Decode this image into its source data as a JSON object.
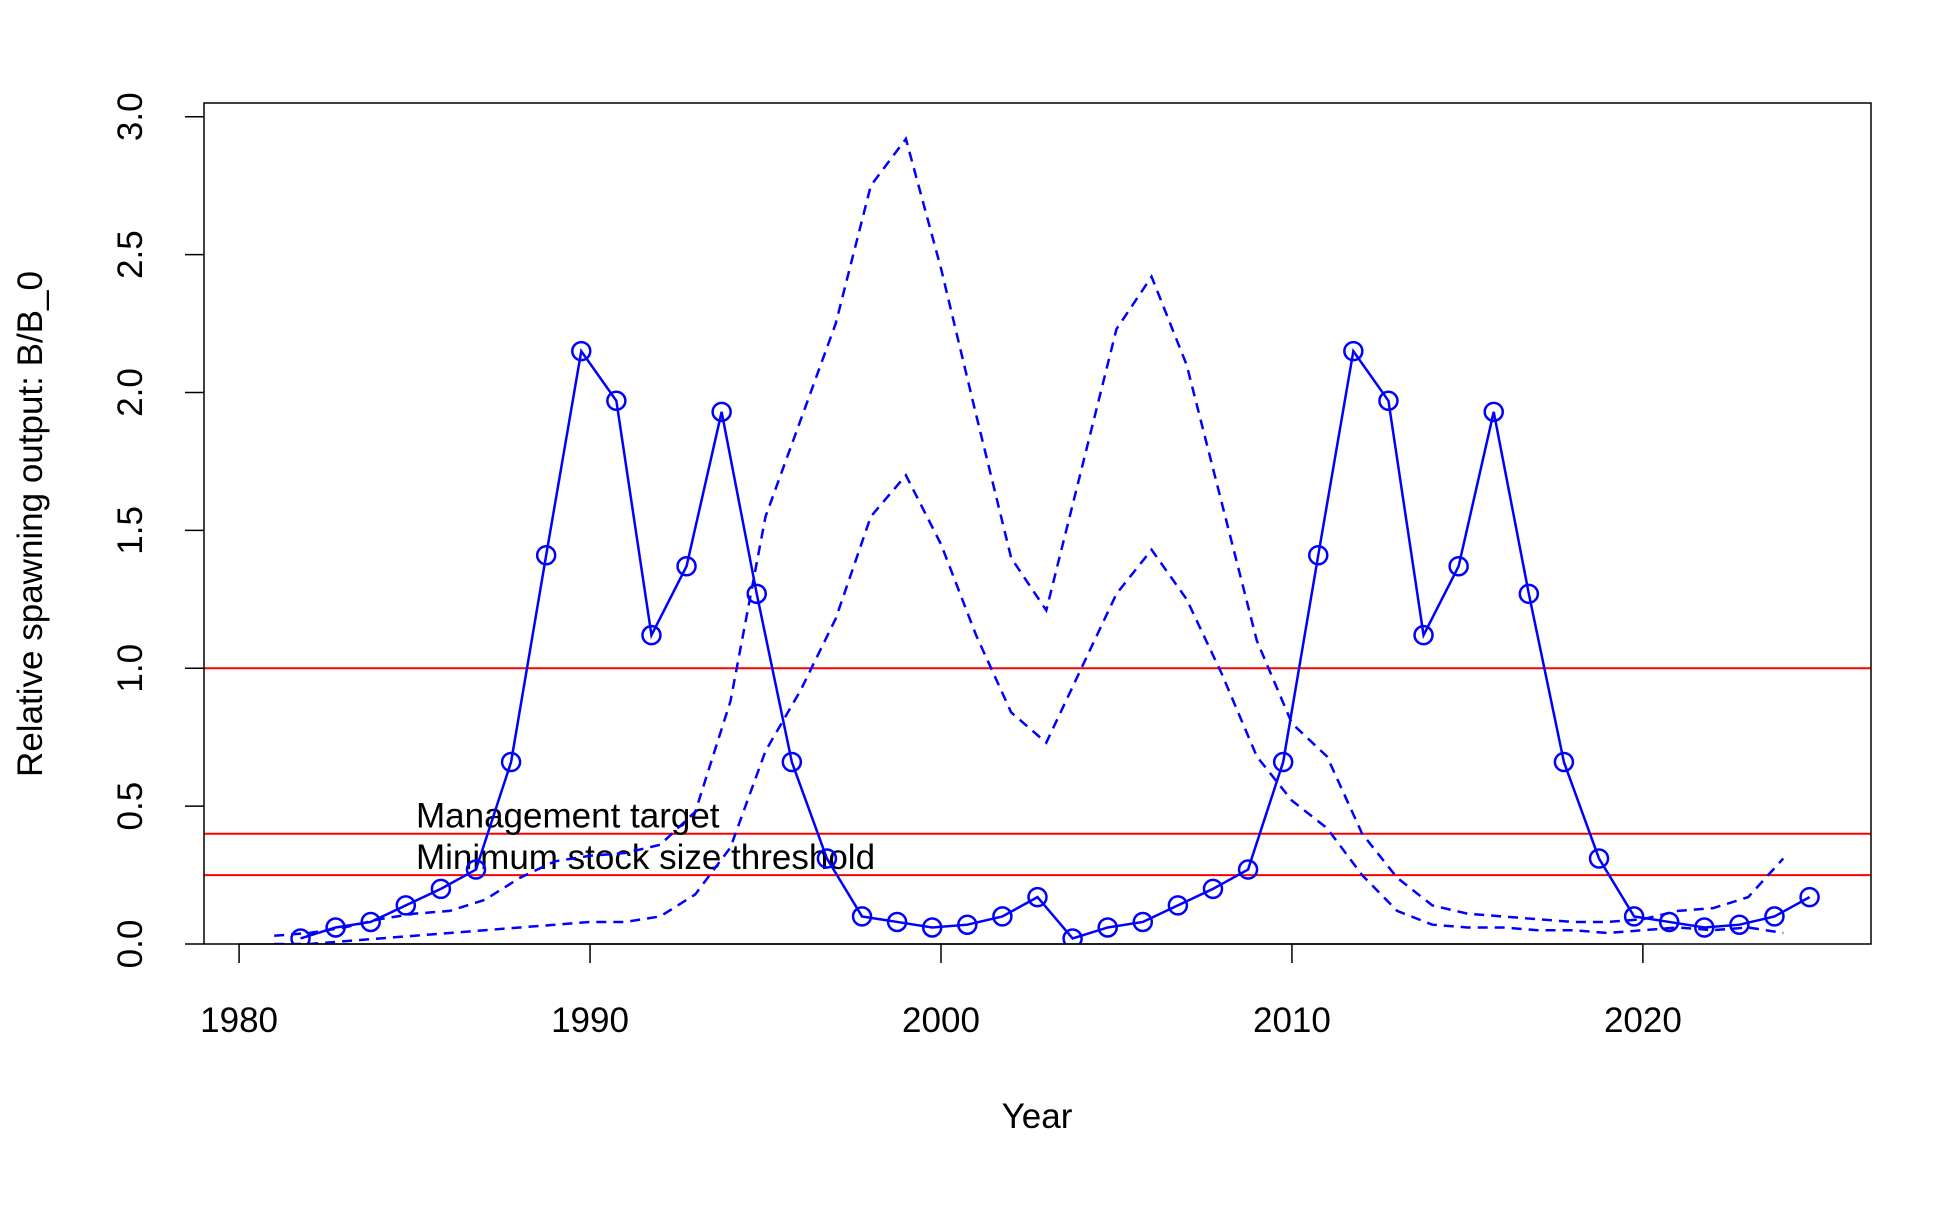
{
  "chart_data": {
    "type": "line",
    "x_label": "Year",
    "y_label": "Relative spawning output: B/B_0",
    "xlim": [
      1979,
      2026.5
    ],
    "ylim": [
      0,
      3.05
    ],
    "xticks": [
      1980,
      1990,
      2000,
      2010,
      2020
    ],
    "yticks": [
      {
        "value": 0,
        "label": "0.0"
      },
      {
        "value": 0.5,
        "label": "0.5"
      },
      {
        "value": 1,
        "label": "1.0"
      },
      {
        "value": 1.5,
        "label": "1.5"
      },
      {
        "value": 2,
        "label": "2.0"
      },
      {
        "value": 2.5,
        "label": "2.5"
      },
      {
        "value": 3,
        "label": "3.0"
      }
    ],
    "series": [
      {
        "color": "#0000ff",
        "linestyle": "solid",
        "markers": true,
        "x": [
          1981.75,
          1982.75,
          1983.75,
          1984.75,
          1985.75,
          1986.75,
          1987.75,
          1988.75,
          1989.75,
          1990.75,
          1991.75,
          1992.75,
          1993.75,
          1994.75,
          1995.75,
          1996.75,
          1997.75,
          1998.75,
          1999.75,
          2000.75,
          2001.75,
          2002.75,
          2003.75,
          2004.75,
          2005.75,
          2006.75,
          2007.75,
          2008.75,
          2009.75,
          2010.75,
          2011.75,
          2012.75,
          2013.75,
          2014.75,
          2015.75,
          2016.75,
          2017.75,
          2018.75,
          2019.75,
          2020.75,
          2021.75,
          2022.75,
          2023.75,
          2024.75
        ],
        "values": [
          0.02,
          0.06,
          0.08,
          0.14,
          0.2,
          0.27,
          0.66,
          1.41,
          2.15,
          1.97,
          1.12,
          1.37,
          1.93,
          1.27,
          0.66,
          0.31,
          0.1,
          0.08,
          0.06,
          0.07,
          0.1,
          0.17,
          0.02,
          0.06,
          0.08,
          0.14,
          0.2,
          0.27,
          0.66,
          1.41,
          2.15,
          1.97,
          1.12,
          1.37,
          1.93,
          1.27,
          0.66,
          0.31,
          0.1,
          0.08,
          0.06,
          0.07,
          0.1,
          0.17
        ]
      },
      {
        "color": "#0000ff",
        "linestyle": "dashed",
        "markers": false,
        "x": [
          1981,
          1982,
          1983,
          1984,
          1985,
          1986,
          1987,
          1988,
          1989,
          1990,
          1991,
          1992,
          1993,
          1994,
          1995,
          1996,
          1997,
          1998,
          1999,
          2000,
          2001,
          2002,
          2003,
          2004,
          2005,
          2006,
          2007,
          2008,
          2009,
          2010,
          2011,
          2012,
          2013,
          2014,
          2015,
          2016,
          2017,
          2018,
          2019,
          2020,
          2021,
          2022,
          2023,
          2024
        ],
        "values": [
          0.03,
          0.04,
          0.06,
          0.09,
          0.11,
          0.12,
          0.16,
          0.24,
          0.3,
          0.32,
          0.33,
          0.36,
          0.48,
          0.88,
          1.55,
          1.9,
          2.25,
          2.75,
          2.92,
          2.45,
          1.92,
          1.4,
          1.21,
          1.72,
          2.23,
          2.42,
          2.1,
          1.6,
          1.1,
          0.8,
          0.68,
          0.4,
          0.24,
          0.14,
          0.11,
          0.1,
          0.09,
          0.08,
          0.08,
          0.09,
          0.12,
          0.13,
          0.17,
          0.31
        ]
      },
      {
        "color": "#0000ff",
        "linestyle": "dashed",
        "markers": false,
        "x": [
          1981,
          1982,
          1983,
          1984,
          1985,
          1986,
          1987,
          1988,
          1989,
          1990,
          1991,
          1992,
          1993,
          1994,
          1995,
          1996,
          1997,
          1998,
          1999,
          2000,
          2001,
          2002,
          2003,
          2004,
          2005,
          2006,
          2007,
          2008,
          2009,
          2010,
          2011,
          2012,
          2013,
          2014,
          2015,
          2016,
          2017,
          2018,
          2019,
          2020,
          2021,
          2022,
          2023,
          2024
        ],
        "values": [
          0,
          0,
          0.01,
          0.02,
          0.03,
          0.04,
          0.05,
          0.06,
          0.07,
          0.08,
          0.08,
          0.1,
          0.18,
          0.35,
          0.7,
          0.92,
          1.18,
          1.55,
          1.7,
          1.45,
          1.12,
          0.84,
          0.73,
          1,
          1.27,
          1.43,
          1.25,
          0.98,
          0.68,
          0.52,
          0.42,
          0.25,
          0.12,
          0.07,
          0.06,
          0.06,
          0.05,
          0.05,
          0.04,
          0.05,
          0.06,
          0.05,
          0.06,
          0.04
        ]
      }
    ],
    "hlines": [
      {
        "value": 1,
        "color": "#ff0000"
      },
      {
        "value": 0.4,
        "color": "#ff0000",
        "label": "Management target"
      },
      {
        "value": 0.25,
        "color": "#ff0000",
        "label": "Minimum stock size threshold"
      }
    ]
  }
}
